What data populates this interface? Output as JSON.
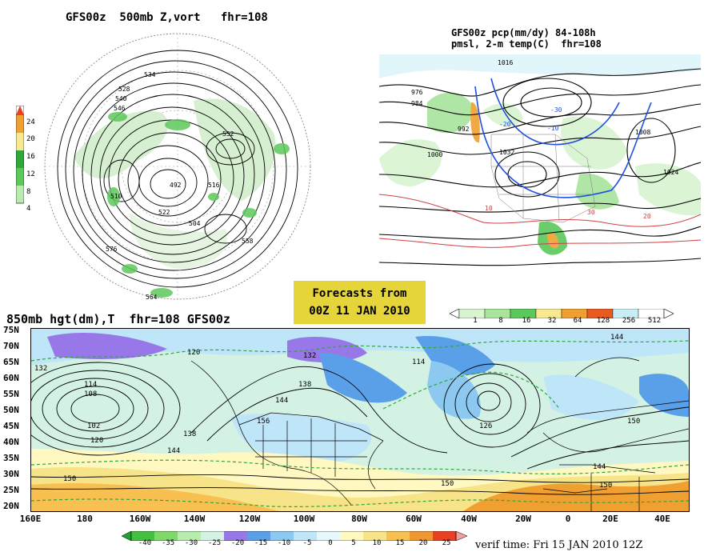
{
  "upper_left": {
    "title": "GFS00z  500mb Z,vort   fhr=108",
    "colorbar_ticks": [
      "24",
      "20",
      "16",
      "12",
      "8",
      "4"
    ],
    "contour_labels": [
      "534",
      "528",
      "540",
      "546",
      "552",
      "516",
      "510",
      "492",
      "504",
      "522",
      "558",
      "576",
      "564"
    ]
  },
  "upper_right": {
    "title_line1": "GFS00z pcp(mm/dy) 84-108h",
    "title_line2": "pmsl, 2-m temp(C)  fhr=108",
    "colorbar_ticks": [
      "1",
      "8",
      "16",
      "32",
      "64",
      "128",
      "256",
      "512"
    ],
    "colorbar_colors": [
      "#d8f5d0",
      "#a8e49c",
      "#5cc85a",
      "#2fa83a",
      "#f8e890",
      "#f0a030",
      "#e85a20",
      "#c8eef5"
    ],
    "contour_labels": [
      "1016",
      "1000",
      "1024",
      "1008",
      "992",
      "1032",
      "984",
      "976",
      "10",
      "20",
      "30",
      "-10",
      "-20",
      "-30"
    ]
  },
  "stamp": {
    "line1": "Forecasts from",
    "line2": "00Z 11 JAN 2010"
  },
  "lower": {
    "title": "850mb hgt(dm),T  fhr=108 GFS00z",
    "lat_labels": [
      "75N",
      "70N",
      "65N",
      "60N",
      "55N",
      "50N",
      "45N",
      "40N",
      "35N",
      "30N",
      "25N",
      "20N"
    ],
    "lon_labels": [
      "160E",
      "180",
      "160W",
      "140W",
      "120W",
      "100W",
      "80W",
      "60W",
      "40W",
      "20W",
      "0",
      "20E",
      "40E"
    ],
    "contour_labels": [
      "132",
      "114",
      "108",
      "102",
      "120",
      "138",
      "144",
      "150",
      "156",
      "126"
    ],
    "colorbar_ticks": [
      "-40",
      "-35",
      "-30",
      "-25",
      "-20",
      "-15",
      "-10",
      "-5",
      "0",
      "5",
      "10",
      "15",
      "20",
      "25"
    ],
    "colorbar_colors": [
      "#44c040",
      "#7ed86a",
      "#b8ecae",
      "#d4f2e4",
      "#9878e8",
      "#5aa0e8",
      "#8cc8f0",
      "#bfe6f8",
      "#e6f8fc",
      "#fff8c0",
      "#f8e488",
      "#f8c050",
      "#f09830",
      "#e84020"
    ],
    "verif_time": "verif time: Fri 15 JAN 2010 12Z"
  }
}
